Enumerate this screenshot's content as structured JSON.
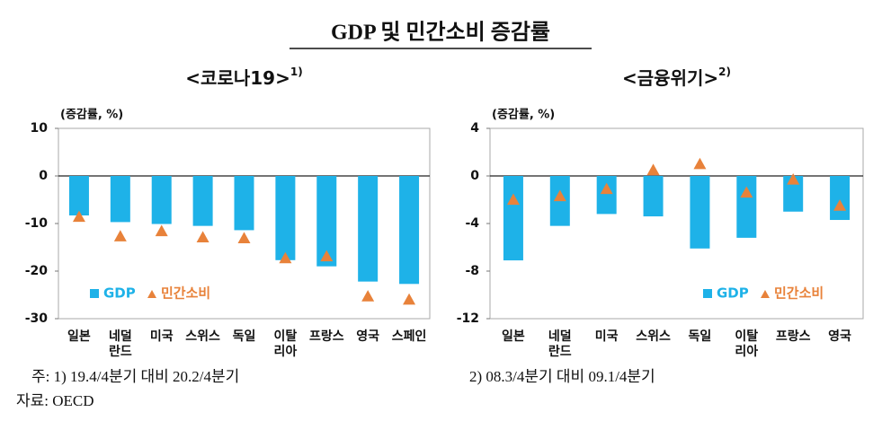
{
  "title": "GDP 및 민간소비 증감률",
  "chart_data": [
    {
      "type": "bar",
      "subtitle": "<코로나19>",
      "subtitle_note": "1)",
      "ylabel": "(증감률, %)",
      "categories": [
        "일본",
        "네덜\n란드",
        "미국",
        "스위스",
        "독일",
        "이탈\n리아",
        "프랑스",
        "영국",
        "스페인"
      ],
      "series": [
        {
          "name": "GDP",
          "type": "bar",
          "color": "#1eb2e8",
          "values": [
            -8.3,
            -9.7,
            -10.1,
            -10.5,
            -11.4,
            -17.7,
            -19.0,
            -22.2,
            -22.7
          ]
        },
        {
          "name": "민간소비",
          "type": "marker",
          "marker": "triangle",
          "color": "#e8823a",
          "values": [
            -8.6,
            -12.7,
            -11.6,
            -12.9,
            -13.1,
            -17.3,
            -16.9,
            -25.3,
            -26.0
          ]
        }
      ],
      "ylim": [
        -30,
        10
      ],
      "yticks": [
        -30,
        -20,
        -10,
        0,
        10
      ],
      "legend": "lower left"
    },
    {
      "type": "bar",
      "subtitle": "<금융위기>",
      "subtitle_note": "2)",
      "ylabel": "(증감률, %)",
      "categories": [
        "일본",
        "네덜\n란드",
        "미국",
        "스위스",
        "독일",
        "이탈\n리아",
        "프랑스",
        "영국"
      ],
      "series": [
        {
          "name": "GDP",
          "type": "bar",
          "color": "#1eb2e8",
          "values": [
            -7.1,
            -4.2,
            -3.2,
            -3.4,
            -6.1,
            -5.2,
            -3.0,
            -3.7
          ]
        },
        {
          "name": "민간소비",
          "type": "marker",
          "marker": "triangle",
          "color": "#e8823a",
          "values": [
            -2.0,
            -1.7,
            -1.1,
            0.5,
            1.0,
            -1.4,
            -0.3,
            -2.5
          ]
        }
      ],
      "ylim": [
        -12,
        4
      ],
      "yticks": [
        -12,
        -8,
        -4,
        0,
        4
      ],
      "legend": "lower right"
    }
  ],
  "notes": [
    "주: 1) 19.4/4분기 대비 20.2/4분기",
    "2) 08.3/4분기 대비 09.1/4분기"
  ],
  "source": "자료: OECD"
}
